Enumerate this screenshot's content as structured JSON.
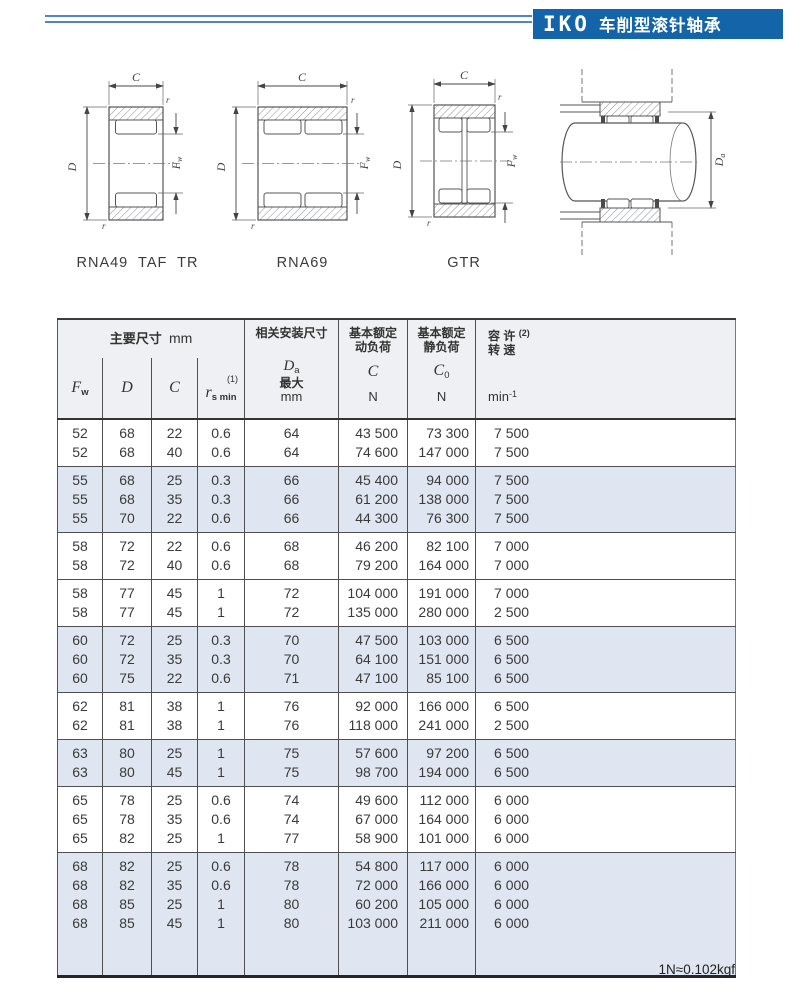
{
  "banner": {
    "logo": "IKO",
    "title": "车削型滚针轴承"
  },
  "footer": {
    "note": "1N≈0.102kgf"
  },
  "diagrams": {
    "labels": [
      "RNA49  TAF  TR",
      "RNA69",
      "GTR"
    ],
    "sym": {
      "C": "C",
      "D": "D",
      "F": "F",
      "w": "w",
      "r": "r",
      "a": "a"
    }
  },
  "table": {
    "h": {
      "main": "主要尺寸",
      "mm": "mm",
      "F": "F",
      "w": "w",
      "D": "D",
      "C": "C",
      "rsup": "(1)",
      "r": "r",
      "smin": "s min",
      "mount": "相关安装尺寸",
      "DaD": "D",
      "Daa": "a",
      "max": "最大",
      "mm2": "mm",
      "dyn1": "基本额定",
      "dyn2": "动负荷",
      "Cdyn": "C",
      "N1": "N",
      "st1": "基本额定",
      "st2": "静负荷",
      "C0": "C",
      "C0sub": "0",
      "N2": "N",
      "sp1": "容  许",
      "spsup": "(2)",
      "sp2": "转  速",
      "spunit": "min",
      "spexp": "-1"
    },
    "groups": [
      {
        "shaded": false,
        "rows": [
          [
            "52",
            "68",
            "22",
            "0.6",
            "64",
            "43 500",
            "73 300",
            "7 500"
          ],
          [
            "52",
            "68",
            "40",
            "0.6",
            "64",
            "74 600",
            "147 000",
            "7 500"
          ]
        ]
      },
      {
        "shaded": true,
        "rows": [
          [
            "55",
            "68",
            "25",
            "0.3",
            "66",
            "45 400",
            "94 000",
            "7 500"
          ],
          [
            "55",
            "68",
            "35",
            "0.3",
            "66",
            "61 200",
            "138 000",
            "7 500"
          ],
          [
            "55",
            "70",
            "22",
            "0.6",
            "66",
            "44 300",
            "76 300",
            "7 500"
          ]
        ]
      },
      {
        "shaded": false,
        "rows": [
          [
            "58",
            "72",
            "22",
            "0.6",
            "68",
            "46 200",
            "82 100",
            "7 000"
          ],
          [
            "58",
            "72",
            "40",
            "0.6",
            "68",
            "79 200",
            "164 000",
            "7 000"
          ]
        ]
      },
      {
        "shaded": false,
        "rows": [
          [
            "58",
            "77",
            "45",
            "1",
            "72",
            "104 000",
            "191 000",
            "7 000"
          ],
          [
            "58",
            "77",
            "45",
            "1",
            "72",
            "135 000",
            "280 000",
            "2 500"
          ]
        ]
      },
      {
        "shaded": true,
        "rows": [
          [
            "60",
            "72",
            "25",
            "0.3",
            "70",
            "47 500",
            "103 000",
            "6 500"
          ],
          [
            "60",
            "72",
            "35",
            "0.3",
            "70",
            "64 100",
            "151 000",
            "6 500"
          ],
          [
            "60",
            "75",
            "22",
            "0.6",
            "71",
            "47 100",
            "85 100",
            "6 500"
          ]
        ]
      },
      {
        "shaded": false,
        "rows": [
          [
            "62",
            "81",
            "38",
            "1",
            "76",
            "92 000",
            "166 000",
            "6 500"
          ],
          [
            "62",
            "81",
            "38",
            "1",
            "76",
            "118 000",
            "241 000",
            "2 500"
          ]
        ]
      },
      {
        "shaded": true,
        "rows": [
          [
            "63",
            "80",
            "25",
            "1",
            "75",
            "57 600",
            "97 200",
            "6 500"
          ],
          [
            "63",
            "80",
            "45",
            "1",
            "75",
            "98 700",
            "194 000",
            "6 500"
          ]
        ]
      },
      {
        "shaded": false,
        "rows": [
          [
            "65",
            "78",
            "25",
            "0.6",
            "74",
            "49 600",
            "112 000",
            "6 000"
          ],
          [
            "65",
            "78",
            "35",
            "0.6",
            "74",
            "67 000",
            "164 000",
            "6 000"
          ],
          [
            "65",
            "82",
            "25",
            "1",
            "77",
            "58 900",
            "101 000",
            "6 000"
          ]
        ]
      },
      {
        "shaded": true,
        "filler": true,
        "rows": [
          [
            "68",
            "82",
            "25",
            "0.6",
            "78",
            "54 800",
            "117 000",
            "6 000"
          ],
          [
            "68",
            "82",
            "35",
            "0.6",
            "78",
            "72 000",
            "166 000",
            "6 000"
          ],
          [
            "68",
            "85",
            "25",
            "1",
            "80",
            "60 200",
            "105 000",
            "6 000"
          ],
          [
            "68",
            "85",
            "45",
            "1",
            "80",
            "103 000",
            "211 000",
            "6 000"
          ]
        ]
      }
    ]
  }
}
